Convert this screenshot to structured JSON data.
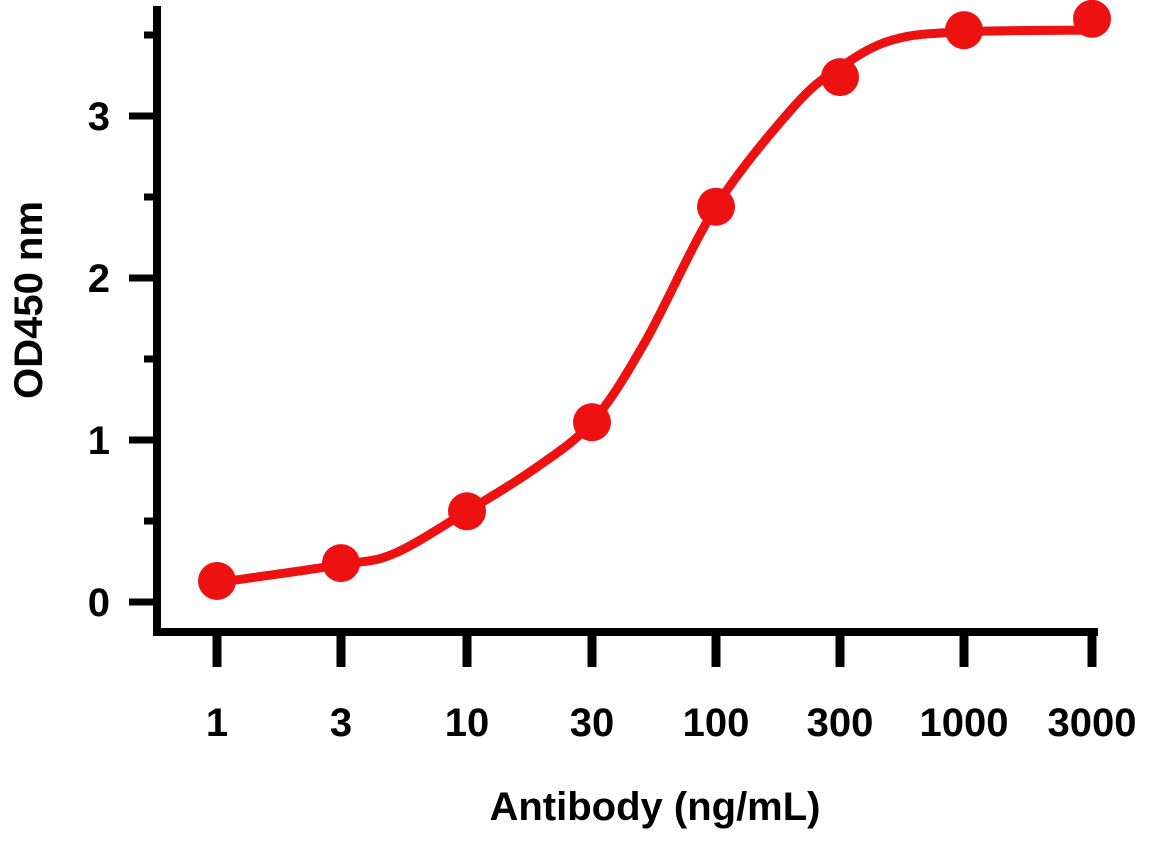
{
  "chart_data": {
    "type": "scatter",
    "title": "",
    "xlabel": "Antibody (ng/mL)",
    "ylabel": "OD450 nm",
    "x_scale": "log",
    "x_ticks": [
      1,
      3,
      10,
      30,
      100,
      300,
      1000,
      3000
    ],
    "x_tick_labels": [
      "1",
      "3",
      "10",
      "30",
      "100",
      "300",
      "1000",
      "3000"
    ],
    "y_ticks": [
      0,
      1,
      2,
      3
    ],
    "y_tick_labels": [
      "0",
      "1",
      "2",
      "3"
    ],
    "ylim": [
      0,
      3.6
    ],
    "grid": false,
    "color": "#ee1111",
    "series": [
      {
        "points": [
          {
            "x": 1,
            "y": 0.13
          },
          {
            "x": 3,
            "y": 0.24
          },
          {
            "x": 10,
            "y": 0.56
          },
          {
            "x": 30,
            "y": 1.11
          },
          {
            "x": 100,
            "y": 2.44
          },
          {
            "x": 300,
            "y": 3.24
          },
          {
            "x": 1000,
            "y": 3.53
          },
          {
            "x": 3000,
            "y": 3.6
          }
        ],
        "fit_curve": [
          {
            "x": 1,
            "y": 0.12
          },
          {
            "x": 3,
            "y": 0.23
          },
          {
            "x": 5,
            "y": 0.3
          },
          {
            "x": 10,
            "y": 0.56
          },
          {
            "x": 18,
            "y": 0.82
          },
          {
            "x": 30,
            "y": 1.11
          },
          {
            "x": 50,
            "y": 1.6
          },
          {
            "x": 100,
            "y": 2.44
          },
          {
            "x": 200,
            "y": 3.06
          },
          {
            "x": 300,
            "y": 3.3
          },
          {
            "x": 500,
            "y": 3.47
          },
          {
            "x": 1000,
            "y": 3.52
          },
          {
            "x": 3000,
            "y": 3.53
          }
        ]
      }
    ]
  }
}
